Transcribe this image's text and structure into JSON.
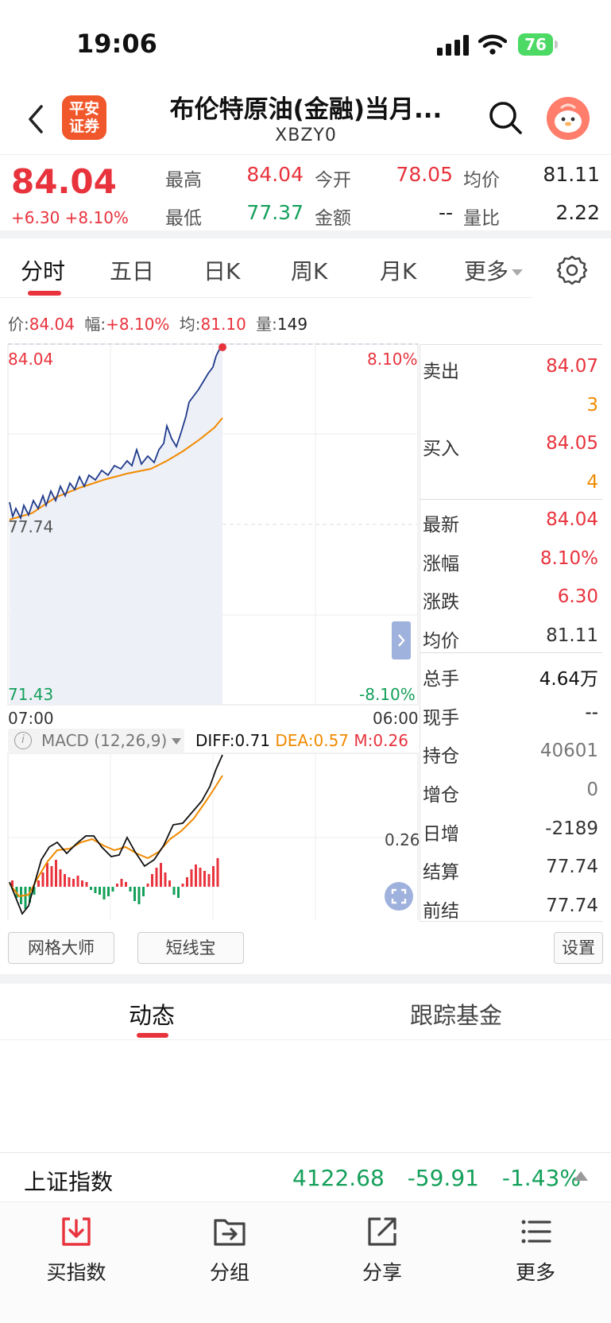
{
  "status_bar": {
    "time": "19:06",
    "battery": "76"
  },
  "header": {
    "title": "布伦特原油(金融)当月...",
    "symbol": "XBZY0",
    "logo_text_1": "平安",
    "logo_text_2": "证券"
  },
  "quote": {
    "price": "84.04",
    "change": "+6.30 +8.10%",
    "fields": [
      {
        "label": "最高",
        "value": "84.04",
        "color": "#e8333d"
      },
      {
        "label": "今开",
        "value": "78.05",
        "color": "#e8333d"
      },
      {
        "label": "均价",
        "value": "81.11",
        "color": "#222222"
      },
      {
        "label": "最低",
        "value": "77.37",
        "color": "#14a05a"
      },
      {
        "label": "金额",
        "value": "--",
        "color": "#222222"
      },
      {
        "label": "量比",
        "value": "2.22",
        "color": "#222222"
      }
    ]
  },
  "tabs": [
    {
      "label": "分时"
    },
    {
      "label": "五日"
    },
    {
      "label": "日K"
    },
    {
      "label": "周K"
    },
    {
      "label": "月K"
    },
    {
      "label": "更多"
    }
  ],
  "infoline": {
    "price_label": "价:",
    "price_value": "84.04",
    "range_label": "幅:",
    "range_value": "+8.10%",
    "avg_label": "均:",
    "avg_value": "81.10",
    "vol_label": "量:",
    "vol_value": "149"
  },
  "chart_labels": {
    "top_left": "84.04",
    "top_right": "8.10%",
    "mid_left": "77.74",
    "bottom_left": "71.43",
    "bottom_right": "-8.10%",
    "time_start": "07:00",
    "time_end": "06:00"
  },
  "macd": {
    "title": "MACD (12,26,9)",
    "diff": "DIFF:0.71",
    "dea": "DEA:0.57",
    "m": "M:0.26",
    "level": "0.26"
  },
  "order_book": {
    "sell_label": "卖出",
    "sell_price": "84.07",
    "sell_qty": "3",
    "buy_label": "买入",
    "buy_price": "84.05",
    "buy_qty": "4",
    "stats": [
      {
        "label": "最新",
        "value": "84.04",
        "color": "#e8333d"
      },
      {
        "label": "涨幅",
        "value": "8.10%",
        "color": "#e8333d"
      },
      {
        "label": "涨跌",
        "value": "6.30",
        "color": "#e8333d"
      },
      {
        "label": "均价",
        "value": "81.11",
        "color": "#333333"
      },
      {
        "label": "总手",
        "value": "4.64万",
        "color": "#111111"
      },
      {
        "label": "现手",
        "value": "--",
        "color": "#111111"
      },
      {
        "label": "持仓",
        "value": "40601",
        "color": "#777777"
      },
      {
        "label": "增仓",
        "value": "0",
        "color": "#777777"
      },
      {
        "label": "日增",
        "value": "-2189",
        "color": "#333333"
      },
      {
        "label": "结算",
        "value": "77.74",
        "color": "#333333"
      },
      {
        "label": "前结",
        "value": "77.74",
        "color": "#333333"
      }
    ]
  },
  "tools": {
    "grid_master": "网格大师",
    "short_line": "短线宝",
    "settings": "设置"
  },
  "subtabs": {
    "dynamics": "动态",
    "tracking_fund": "跟踪基金"
  },
  "ticker": {
    "name": "上证指数",
    "value": "4122.68",
    "change": "-59.91",
    "pct": "-1.43%"
  },
  "bottom_nav": [
    {
      "label": "买指数",
      "icon": "download-icon",
      "color": "#e8333d"
    },
    {
      "label": "分组",
      "icon": "folder-icon",
      "color": "#444444"
    },
    {
      "label": "分享",
      "icon": "share-icon",
      "color": "#444444"
    },
    {
      "label": "更多",
      "icon": "list-icon",
      "color": "#444444"
    }
  ],
  "colors": {
    "up": "#e8333d",
    "down": "#14a05a",
    "avg_line": "#f08a00",
    "price_line": "#1f3a8a"
  }
}
